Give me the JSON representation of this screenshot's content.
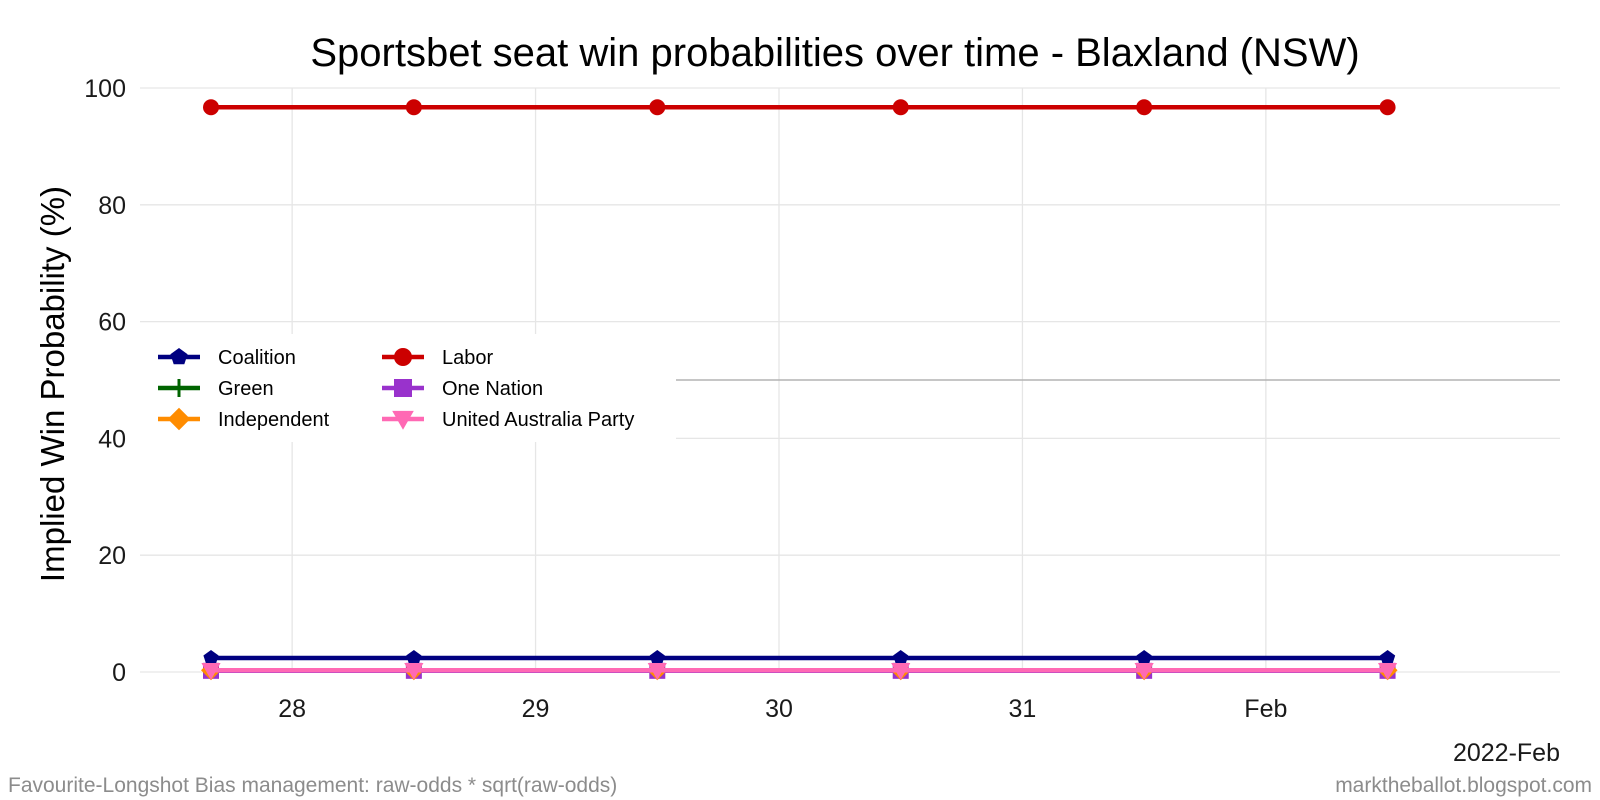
{
  "chart_data": {
    "type": "line",
    "title": "Sportsbet seat win probabilities over time - Blaxland (NSW)",
    "xlabel": "",
    "ylabel": "Implied Win Probability (%)",
    "x_axis_corner_label": "2022-Feb",
    "ylim": [
      0,
      100
    ],
    "yticks": [
      0,
      20,
      40,
      60,
      80,
      100
    ],
    "reference_line_y": 50,
    "xticks": [
      {
        "label": "28",
        "date": "2022-01-28"
      },
      {
        "label": "29",
        "date": "2022-01-29"
      },
      {
        "label": "30",
        "date": "2022-01-30"
      },
      {
        "label": "31",
        "date": "2022-01-31"
      },
      {
        "label": "Feb",
        "date": "2022-02-01"
      }
    ],
    "x": [
      "2022-01-27T16:00",
      "2022-01-28T12:00",
      "2022-01-29T12:00",
      "2022-01-30T12:00",
      "2022-01-31T12:00",
      "2022-02-01T12:00"
    ],
    "xlim": [
      "2022-01-27T09:00",
      "2022-02-02T05:00"
    ],
    "grid": true,
    "legend_position": "left-middle",
    "series": [
      {
        "name": "Coalition",
        "color": "#000080",
        "marker": "pentagon",
        "values": [
          2.4,
          2.4,
          2.4,
          2.4,
          2.4,
          2.4
        ]
      },
      {
        "name": "Labor",
        "color": "#cc0000",
        "marker": "circle",
        "values": [
          96.7,
          96.7,
          96.7,
          96.7,
          96.7,
          96.7
        ]
      },
      {
        "name": "Green",
        "color": "#006400",
        "marker": "plus",
        "values": [
          0.3,
          0.3,
          0.3,
          0.3,
          0.3,
          0.3
        ]
      },
      {
        "name": "One Nation",
        "color": "#9932cc",
        "marker": "square",
        "values": [
          0.2,
          0.2,
          0.2,
          0.2,
          0.2,
          0.2
        ]
      },
      {
        "name": "Independent",
        "color": "#ff8c00",
        "marker": "diamond",
        "values": [
          0.3,
          0.3,
          0.3,
          0.3,
          0.3,
          0.3
        ]
      },
      {
        "name": "United Australia Party",
        "color": "#ff69b4",
        "marker": "triangle-down",
        "values": [
          0.3,
          0.3,
          0.3,
          0.3,
          0.3,
          0.3
        ]
      }
    ]
  },
  "footer": {
    "left": "Favourite-Longshot Bias management: raw-odds * sqrt(raw-odds)",
    "right": "marktheballot.blogspot.com"
  }
}
